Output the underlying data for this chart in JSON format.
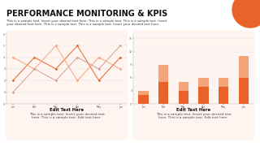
{
  "title": "PERFORMANCE MONITORING & KPIS",
  "subtitle_line1": "This is a sample text. Insert your desired text here. This is a sample text. This is a sample text. Insert",
  "subtitle_line2": "your desired text here. This is a sample text. This is a sample text. Insert your desired text here.",
  "bg_color": "#ffffff",
  "card_bg": "#fff5f0",
  "orange_dark": "#e8622a",
  "orange_light": "#f5a47a",
  "months": [
    "Jan",
    "Feb",
    "Mar",
    "Apr",
    "May",
    "Jun"
  ],
  "line_data": [
    [
      2,
      4,
      3,
      5,
      2,
      4
    ],
    [
      4,
      3,
      5,
      2,
      4,
      3
    ],
    [
      1,
      3,
      2,
      4,
      3,
      5
    ]
  ],
  "line_colors": [
    "#e8622a",
    "#f5a47a",
    "#d4a090"
  ],
  "bar_bottom": [
    2,
    5,
    3,
    4,
    4,
    6
  ],
  "bar_top": [
    1,
    4,
    2,
    2,
    2,
    5
  ],
  "bar_color_bottom": "#e8622a",
  "bar_color_top": "#f5a47a",
  "line_ylim": [
    0,
    6
  ],
  "bar_ylim": [
    0,
    16
  ],
  "edit_text": "Edit Text Here",
  "body_line1": "This is a sample text. Insert your desired text",
  "body_line2": "here. This is a sample text. Edit text here.",
  "corner_circle_color": "#e8622a",
  "title_fontsize": 7.0,
  "subtitle_fontsize": 2.8,
  "card_text_fontsize": 3.0,
  "card_title_fontsize": 3.8
}
